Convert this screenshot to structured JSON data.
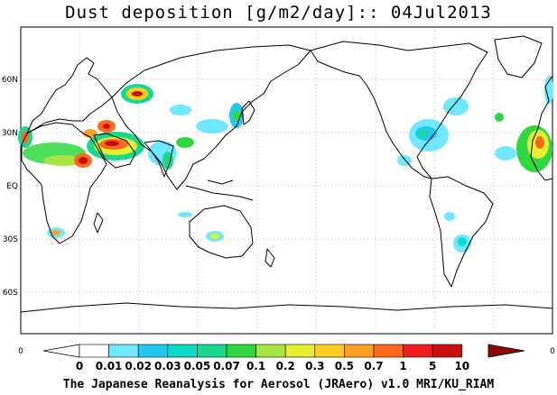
{
  "title": "Dust deposition [g/m2/day]:: 04Jul2013",
  "lat_labels": [
    "60N",
    "30N",
    "EQ",
    "30S",
    "60S"
  ],
  "colorbar": {
    "edge_left": "0",
    "edge_right": "0",
    "labels": [
      "0",
      "0.01",
      "0.02",
      "0.03",
      "0.05",
      "0.07",
      "0.1",
      "0.2",
      "0.3",
      "0.5",
      "0.7",
      "1",
      "5",
      "10"
    ],
    "colors": [
      "#ffffff",
      "#6fe8ff",
      "#22c8f0",
      "#12d8c8",
      "#18d890",
      "#30d840",
      "#a6e640",
      "#e6ee30",
      "#ffcc24",
      "#ffa020",
      "#ff6a1a",
      "#ee1e1e",
      "#c80e0e",
      "#8c0505"
    ],
    "over_color": "#8c0505",
    "under_color": "#ffffff"
  },
  "credit": "The Japanese Reanalysis for Aerosol (JRAero) v1.0 MRI/KU_RIAM"
}
